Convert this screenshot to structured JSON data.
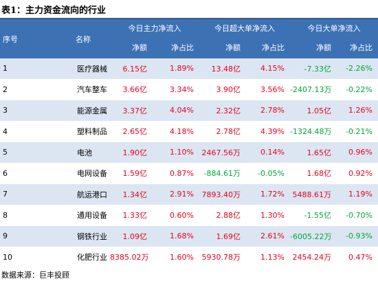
{
  "title": "表1：主力资金流向的行业",
  "header": {
    "index_label": "序号",
    "name_label": "名称",
    "groups": [
      "今日主力净流入",
      "今日超大单净流入",
      "今日大单净流入"
    ],
    "sub_labels": [
      "净额",
      "净占比",
      "净额",
      "净占比",
      "净额",
      "净占比"
    ]
  },
  "colors": {
    "header_bg": "#3c71b4",
    "stripe": "#dce6f2",
    "positive": "#e8001c",
    "negative": "#00a53a"
  },
  "rows": [
    {
      "idx": "1",
      "name": "医疗器械",
      "v": [
        "6.15亿",
        "1.89%",
        "13.48亿",
        "4.15%",
        "-7.33亿",
        "-2.26%"
      ]
    },
    {
      "idx": "2",
      "name": "汽车整车",
      "v": [
        "3.66亿",
        "3.34%",
        "3.90亿",
        "3.56%",
        "-2407.13万",
        "-0.22%"
      ]
    },
    {
      "idx": "3",
      "name": "能源金属",
      "v": [
        "3.37亿",
        "4.04%",
        "2.32亿",
        "2.78%",
        "1.05亿",
        "1.26%"
      ]
    },
    {
      "idx": "4",
      "name": "塑料制品",
      "v": [
        "2.65亿",
        "4.18%",
        "2.78亿",
        "4.39%",
        "-1324.48万",
        "-0.21%"
      ]
    },
    {
      "idx": "5",
      "name": "电池",
      "v": [
        "1.90亿",
        "1.10%",
        "2467.56万",
        "0.14%",
        "1.65亿",
        "0.96%"
      ]
    },
    {
      "idx": "6",
      "name": "电网设备",
      "v": [
        "1.59亿",
        "0.87%",
        "-884.61万",
        "-0.05%",
        "1.68亿",
        "0.92%"
      ]
    },
    {
      "idx": "7",
      "name": "航运港口",
      "v": [
        "1.34亿",
        "2.91%",
        "7893.40万",
        "1.72%",
        "5488.61万",
        "1.19%"
      ]
    },
    {
      "idx": "8",
      "name": "通用设备",
      "v": [
        "1.33亿",
        "0.60%",
        "2.88亿",
        "1.30%",
        "-1.55亿",
        "-0.70%"
      ]
    },
    {
      "idx": "9",
      "name": "钢铁行业",
      "v": [
        "1.09亿",
        "1.68%",
        "1.69亿",
        "2.61%",
        "-6005.22万",
        "-0.93%"
      ]
    },
    {
      "idx": "10",
      "name": "化肥行业",
      "v": [
        "8385.02万",
        "1.60%",
        "5930.78万",
        "1.13%",
        "2454.24万",
        "0.47%"
      ]
    }
  ],
  "source": "数据来源：巨丰投顾"
}
